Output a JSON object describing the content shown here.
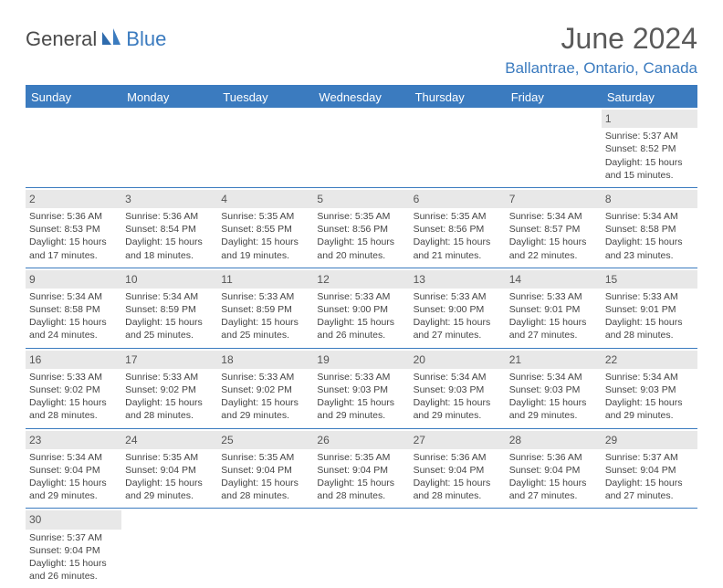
{
  "logo": {
    "part1": "General",
    "part2": "Blue"
  },
  "title": "June 2024",
  "location": "Ballantrae, Ontario, Canada",
  "colors": {
    "accent": "#3b7bbf",
    "header_text": "#ffffff",
    "daynum_bg": "#e8e8e8",
    "body_text": "#444444",
    "title_text": "#5a5a5a"
  },
  "dayNames": [
    "Sunday",
    "Monday",
    "Tuesday",
    "Wednesday",
    "Thursday",
    "Friday",
    "Saturday"
  ],
  "weeks": [
    [
      null,
      null,
      null,
      null,
      null,
      null,
      {
        "n": "1",
        "sr": "Sunrise: 5:37 AM",
        "ss": "Sunset: 8:52 PM",
        "dl": "Daylight: 15 hours and 15 minutes."
      }
    ],
    [
      {
        "n": "2",
        "sr": "Sunrise: 5:36 AM",
        "ss": "Sunset: 8:53 PM",
        "dl": "Daylight: 15 hours and 17 minutes."
      },
      {
        "n": "3",
        "sr": "Sunrise: 5:36 AM",
        "ss": "Sunset: 8:54 PM",
        "dl": "Daylight: 15 hours and 18 minutes."
      },
      {
        "n": "4",
        "sr": "Sunrise: 5:35 AM",
        "ss": "Sunset: 8:55 PM",
        "dl": "Daylight: 15 hours and 19 minutes."
      },
      {
        "n": "5",
        "sr": "Sunrise: 5:35 AM",
        "ss": "Sunset: 8:56 PM",
        "dl": "Daylight: 15 hours and 20 minutes."
      },
      {
        "n": "6",
        "sr": "Sunrise: 5:35 AM",
        "ss": "Sunset: 8:56 PM",
        "dl": "Daylight: 15 hours and 21 minutes."
      },
      {
        "n": "7",
        "sr": "Sunrise: 5:34 AM",
        "ss": "Sunset: 8:57 PM",
        "dl": "Daylight: 15 hours and 22 minutes."
      },
      {
        "n": "8",
        "sr": "Sunrise: 5:34 AM",
        "ss": "Sunset: 8:58 PM",
        "dl": "Daylight: 15 hours and 23 minutes."
      }
    ],
    [
      {
        "n": "9",
        "sr": "Sunrise: 5:34 AM",
        "ss": "Sunset: 8:58 PM",
        "dl": "Daylight: 15 hours and 24 minutes."
      },
      {
        "n": "10",
        "sr": "Sunrise: 5:34 AM",
        "ss": "Sunset: 8:59 PM",
        "dl": "Daylight: 15 hours and 25 minutes."
      },
      {
        "n": "11",
        "sr": "Sunrise: 5:33 AM",
        "ss": "Sunset: 8:59 PM",
        "dl": "Daylight: 15 hours and 25 minutes."
      },
      {
        "n": "12",
        "sr": "Sunrise: 5:33 AM",
        "ss": "Sunset: 9:00 PM",
        "dl": "Daylight: 15 hours and 26 minutes."
      },
      {
        "n": "13",
        "sr": "Sunrise: 5:33 AM",
        "ss": "Sunset: 9:00 PM",
        "dl": "Daylight: 15 hours and 27 minutes."
      },
      {
        "n": "14",
        "sr": "Sunrise: 5:33 AM",
        "ss": "Sunset: 9:01 PM",
        "dl": "Daylight: 15 hours and 27 minutes."
      },
      {
        "n": "15",
        "sr": "Sunrise: 5:33 AM",
        "ss": "Sunset: 9:01 PM",
        "dl": "Daylight: 15 hours and 28 minutes."
      }
    ],
    [
      {
        "n": "16",
        "sr": "Sunrise: 5:33 AM",
        "ss": "Sunset: 9:02 PM",
        "dl": "Daylight: 15 hours and 28 minutes."
      },
      {
        "n": "17",
        "sr": "Sunrise: 5:33 AM",
        "ss": "Sunset: 9:02 PM",
        "dl": "Daylight: 15 hours and 28 minutes."
      },
      {
        "n": "18",
        "sr": "Sunrise: 5:33 AM",
        "ss": "Sunset: 9:02 PM",
        "dl": "Daylight: 15 hours and 29 minutes."
      },
      {
        "n": "19",
        "sr": "Sunrise: 5:33 AM",
        "ss": "Sunset: 9:03 PM",
        "dl": "Daylight: 15 hours and 29 minutes."
      },
      {
        "n": "20",
        "sr": "Sunrise: 5:34 AM",
        "ss": "Sunset: 9:03 PM",
        "dl": "Daylight: 15 hours and 29 minutes."
      },
      {
        "n": "21",
        "sr": "Sunrise: 5:34 AM",
        "ss": "Sunset: 9:03 PM",
        "dl": "Daylight: 15 hours and 29 minutes."
      },
      {
        "n": "22",
        "sr": "Sunrise: 5:34 AM",
        "ss": "Sunset: 9:03 PM",
        "dl": "Daylight: 15 hours and 29 minutes."
      }
    ],
    [
      {
        "n": "23",
        "sr": "Sunrise: 5:34 AM",
        "ss": "Sunset: 9:04 PM",
        "dl": "Daylight: 15 hours and 29 minutes."
      },
      {
        "n": "24",
        "sr": "Sunrise: 5:35 AM",
        "ss": "Sunset: 9:04 PM",
        "dl": "Daylight: 15 hours and 29 minutes."
      },
      {
        "n": "25",
        "sr": "Sunrise: 5:35 AM",
        "ss": "Sunset: 9:04 PM",
        "dl": "Daylight: 15 hours and 28 minutes."
      },
      {
        "n": "26",
        "sr": "Sunrise: 5:35 AM",
        "ss": "Sunset: 9:04 PM",
        "dl": "Daylight: 15 hours and 28 minutes."
      },
      {
        "n": "27",
        "sr": "Sunrise: 5:36 AM",
        "ss": "Sunset: 9:04 PM",
        "dl": "Daylight: 15 hours and 28 minutes."
      },
      {
        "n": "28",
        "sr": "Sunrise: 5:36 AM",
        "ss": "Sunset: 9:04 PM",
        "dl": "Daylight: 15 hours and 27 minutes."
      },
      {
        "n": "29",
        "sr": "Sunrise: 5:37 AM",
        "ss": "Sunset: 9:04 PM",
        "dl": "Daylight: 15 hours and 27 minutes."
      }
    ],
    [
      {
        "n": "30",
        "sr": "Sunrise: 5:37 AM",
        "ss": "Sunset: 9:04 PM",
        "dl": "Daylight: 15 hours and 26 minutes."
      },
      null,
      null,
      null,
      null,
      null,
      null
    ]
  ]
}
